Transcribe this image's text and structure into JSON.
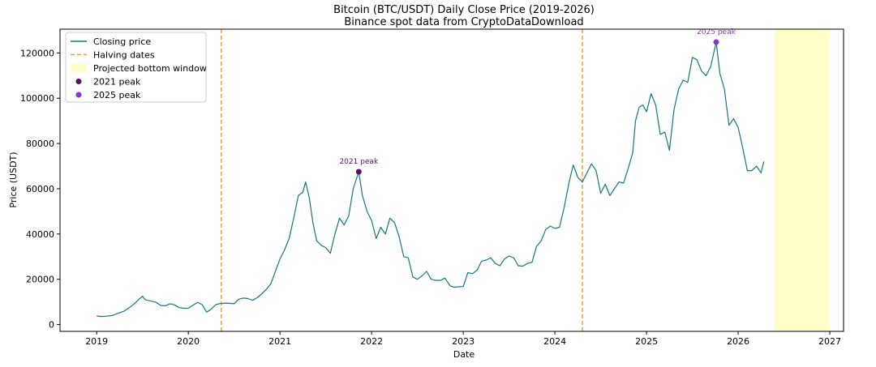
{
  "chart_data": {
    "type": "line",
    "title": "Bitcoin (BTC/USDT) Daily Close Price (2019-2026)",
    "subtitle": "Binance spot data from CryptoDataDownload",
    "xlabel": "Date",
    "ylabel": "Price (USDT)",
    "xlim": [
      2018.6,
      2027.15
    ],
    "ylim": [
      -3000,
      130500
    ],
    "x_ticks": [
      2019,
      2020,
      2021,
      2022,
      2023,
      2024,
      2025,
      2026,
      2027
    ],
    "x_tick_labels": [
      "2019",
      "2020",
      "2021",
      "2022",
      "2023",
      "2024",
      "2025",
      "2026",
      "2027"
    ],
    "y_ticks": [
      0,
      20000,
      40000,
      60000,
      80000,
      100000,
      120000
    ],
    "y_tick_labels": [
      "0",
      "20000",
      "40000",
      "60000",
      "80000",
      "100000",
      "120000"
    ],
    "grid": false,
    "legend_position": "top-left",
    "colors": {
      "line": "#117a7a",
      "halving": "#f0a020",
      "window": "#ffffc8",
      "peak_2021": "#5c0a6e",
      "peak_2025": "#8e35c9"
    },
    "legend": [
      {
        "label": "Closing price",
        "kind": "line"
      },
      {
        "label": "Halving dates",
        "kind": "dashed"
      },
      {
        "label": "Projected bottom window",
        "kind": "patch"
      },
      {
        "label": "2021 peak",
        "kind": "dot-2021"
      },
      {
        "label": "2025 peak",
        "kind": "dot-2025"
      }
    ],
    "halving_dates": [
      2020.36,
      2024.3
    ],
    "projected_bottom_window": [
      2026.4,
      2027.0
    ],
    "peaks": [
      {
        "label": "2021 peak",
        "x": 2021.86,
        "y": 67500
      },
      {
        "label": "2025 peak",
        "x": 2025.76,
        "y": 124800
      }
    ],
    "series": [
      {
        "name": "Closing price",
        "x": [
          2019.0,
          2019.05,
          2019.1,
          2019.17,
          2019.25,
          2019.3,
          2019.38,
          2019.42,
          2019.47,
          2019.5,
          2019.53,
          2019.58,
          2019.65,
          2019.7,
          2019.75,
          2019.8,
          2019.85,
          2019.9,
          2019.95,
          2020.0,
          2020.05,
          2020.1,
          2020.15,
          2020.2,
          2020.25,
          2020.3,
          2020.35,
          2020.42,
          2020.5,
          2020.55,
          2020.6,
          2020.65,
          2020.7,
          2020.75,
          2020.8,
          2020.85,
          2020.9,
          2020.95,
          2021.0,
          2021.05,
          2021.1,
          2021.15,
          2021.2,
          2021.25,
          2021.28,
          2021.32,
          2021.36,
          2021.4,
          2021.45,
          2021.5,
          2021.55,
          2021.6,
          2021.65,
          2021.7,
          2021.75,
          2021.8,
          2021.86,
          2021.9,
          2021.95,
          2022.0,
          2022.05,
          2022.1,
          2022.15,
          2022.2,
          2022.25,
          2022.3,
          2022.35,
          2022.4,
          2022.45,
          2022.5,
          2022.55,
          2022.6,
          2022.65,
          2022.7,
          2022.75,
          2022.8,
          2022.86,
          2022.9,
          2022.95,
          2023.0,
          2023.05,
          2023.1,
          2023.15,
          2023.2,
          2023.25,
          2023.3,
          2023.35,
          2023.4,
          2023.45,
          2023.5,
          2023.55,
          2023.6,
          2023.65,
          2023.7,
          2023.75,
          2023.8,
          2023.85,
          2023.9,
          2023.95,
          2024.0,
          2024.05,
          2024.1,
          2024.15,
          2024.2,
          2024.25,
          2024.3,
          2024.35,
          2024.4,
          2024.45,
          2024.5,
          2024.55,
          2024.6,
          2024.65,
          2024.7,
          2024.75,
          2024.8,
          2024.85,
          2024.88,
          2024.92,
          2024.96,
          2025.0,
          2025.05,
          2025.1,
          2025.15,
          2025.2,
          2025.25,
          2025.3,
          2025.35,
          2025.4,
          2025.45,
          2025.5,
          2025.55,
          2025.6,
          2025.65,
          2025.7,
          2025.76,
          2025.8,
          2025.85,
          2025.9,
          2025.95,
          2026.0,
          2026.05,
          2026.1,
          2026.15,
          2026.2,
          2026.25,
          2026.28
        ],
        "values": [
          3800,
          3600,
          3700,
          4000,
          5200,
          6000,
          8200,
          9500,
          11500,
          12500,
          11000,
          10500,
          9800,
          8400,
          8300,
          9200,
          8700,
          7500,
          7200,
          7200,
          8500,
          9800,
          8800,
          5500,
          6800,
          8800,
          9300,
          9500,
          9200,
          11200,
          11700,
          11500,
          10700,
          11800,
          13500,
          15500,
          18000,
          23500,
          29000,
          33000,
          38000,
          47000,
          57000,
          58500,
          63000,
          56000,
          45000,
          37000,
          35000,
          34000,
          31500,
          40000,
          47000,
          44000,
          48000,
          60000,
          67500,
          57000,
          50000,
          46000,
          38000,
          43000,
          40000,
          47000,
          45000,
          39000,
          30000,
          29500,
          21000,
          20000,
          21500,
          23500,
          20000,
          19500,
          19500,
          20500,
          17000,
          16500,
          16700,
          16800,
          23000,
          22500,
          24000,
          28000,
          28500,
          29500,
          27000,
          26000,
          29000,
          30300,
          29500,
          26000,
          25800,
          27000,
          27500,
          34500,
          37000,
          42000,
          43500,
          42500,
          43000,
          51500,
          62000,
          70500,
          65000,
          63000,
          67000,
          71000,
          68000,
          58000,
          62000,
          57000,
          60000,
          63000,
          62500,
          69000,
          76000,
          90000,
          96000,
          97000,
          94000,
          102000,
          97000,
          84000,
          85000,
          77000,
          95000,
          104000,
          108000,
          107000,
          118000,
          117000,
          112000,
          110000,
          114000,
          124800,
          111000,
          104000,
          88000,
          91000,
          87000,
          78000,
          68000,
          68000,
          70000,
          67000,
          72000
        ]
      }
    ]
  }
}
